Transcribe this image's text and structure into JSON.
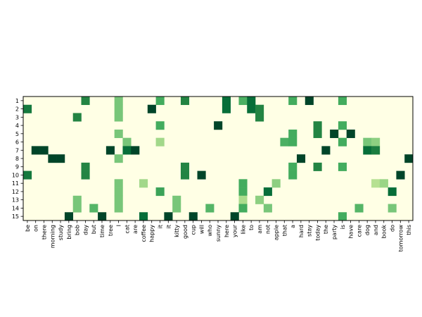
{
  "chart_data": {
    "type": "heatmap",
    "title": "",
    "xlabel": "",
    "ylabel": "",
    "colormap": "YlGn",
    "color_range": [
      0,
      1
    ],
    "colors": [
      "#ffffe5",
      "#f7fcb9",
      "#d9f0a3",
      "#addd8e",
      "#78c679",
      "#41ab5d",
      "#238443",
      "#006837",
      "#004529"
    ],
    "x_labels": [
      "be",
      "on",
      "there",
      "morning",
      "study",
      "bring",
      "bob",
      "day",
      "but",
      "time",
      "tree",
      "I",
      "cat",
      "are",
      "coffee",
      "happy",
      "it",
      "it",
      "kitty",
      "good",
      "cup",
      "will",
      "who",
      "sunny",
      "here",
      "your",
      "like",
      "to",
      "am",
      "not",
      "apple",
      "that",
      "a",
      "hard",
      "stay",
      "today",
      "the",
      "party",
      "is",
      "have",
      "care",
      "dog",
      "and",
      "book",
      "do",
      "tomorrow",
      "this"
    ],
    "y_labels": [
      "1",
      "2",
      "3",
      "4",
      "5",
      "6",
      "7",
      "8",
      "9",
      "10",
      "11",
      "12",
      "13",
      "14",
      "15"
    ],
    "background_value": 0,
    "cells": [
      [
        1,
        7,
        0.75
      ],
      [
        1,
        11,
        0.5
      ],
      [
        1,
        16,
        0.62
      ],
      [
        1,
        19,
        0.75
      ],
      [
        1,
        24,
        0.85
      ],
      [
        1,
        26,
        0.6
      ],
      [
        1,
        27,
        0.85
      ],
      [
        1,
        32,
        0.62
      ],
      [
        1,
        34,
        1
      ],
      [
        1,
        38,
        0.62
      ],
      [
        2,
        0,
        0.8
      ],
      [
        2,
        11,
        0.5
      ],
      [
        2,
        15,
        1
      ],
      [
        2,
        24,
        0.85
      ],
      [
        2,
        27,
        0.85
      ],
      [
        2,
        28,
        0.75
      ],
      [
        3,
        6,
        0.75
      ],
      [
        3,
        11,
        0.5
      ],
      [
        3,
        28,
        0.75
      ],
      [
        4,
        16,
        0.62
      ],
      [
        4,
        23,
        1
      ],
      [
        4,
        35,
        0.75
      ],
      [
        4,
        38,
        0.62
      ],
      [
        5,
        11,
        0.5
      ],
      [
        5,
        32,
        0.62
      ],
      [
        5,
        35,
        0.75
      ],
      [
        5,
        37,
        1
      ],
      [
        5,
        39,
        1
      ],
      [
        6,
        12,
        0.5
      ],
      [
        6,
        16,
        0.4
      ],
      [
        6,
        31,
        0.6
      ],
      [
        6,
        32,
        0.62
      ],
      [
        6,
        38,
        0.62
      ],
      [
        6,
        41,
        0.5
      ],
      [
        6,
        42,
        0.45
      ],
      [
        7,
        1,
        1
      ],
      [
        7,
        2,
        1
      ],
      [
        7,
        10,
        1
      ],
      [
        7,
        12,
        0.85
      ],
      [
        7,
        13,
        1
      ],
      [
        7,
        36,
        1
      ],
      [
        7,
        41,
        0.85
      ],
      [
        7,
        42,
        0.78
      ],
      [
        8,
        3,
        1
      ],
      [
        8,
        4,
        1
      ],
      [
        8,
        11,
        0.5
      ],
      [
        8,
        33,
        1
      ],
      [
        8,
        46,
        1
      ],
      [
        9,
        7,
        0.75
      ],
      [
        9,
        19,
        0.75
      ],
      [
        9,
        32,
        0.62
      ],
      [
        9,
        35,
        0.75
      ],
      [
        9,
        38,
        0.62
      ],
      [
        10,
        0,
        0.8
      ],
      [
        10,
        7,
        0.75
      ],
      [
        10,
        19,
        0.75
      ],
      [
        10,
        21,
        1
      ],
      [
        10,
        32,
        0.62
      ],
      [
        10,
        45,
        1
      ],
      [
        11,
        11,
        0.5
      ],
      [
        11,
        14,
        0.4
      ],
      [
        11,
        26,
        0.62
      ],
      [
        11,
        30,
        0.45
      ],
      [
        11,
        42,
        0.35
      ],
      [
        11,
        43,
        0.42
      ],
      [
        12,
        11,
        0.5
      ],
      [
        12,
        16,
        0.65
      ],
      [
        12,
        26,
        0.62
      ],
      [
        12,
        29,
        0.85
      ],
      [
        12,
        44,
        0.85
      ],
      [
        13,
        6,
        0.5
      ],
      [
        13,
        11,
        0.5
      ],
      [
        13,
        18,
        0.5
      ],
      [
        13,
        26,
        0.38
      ],
      [
        13,
        28,
        0.45
      ],
      [
        14,
        6,
        0.5
      ],
      [
        14,
        8,
        0.58
      ],
      [
        14,
        11,
        0.5
      ],
      [
        14,
        18,
        0.5
      ],
      [
        14,
        22,
        0.58
      ],
      [
        14,
        26,
        0.62
      ],
      [
        14,
        29,
        0.5
      ],
      [
        14,
        40,
        0.58
      ],
      [
        14,
        44,
        0.5
      ],
      [
        15,
        5,
        1
      ],
      [
        15,
        9,
        1
      ],
      [
        15,
        14,
        0.85
      ],
      [
        15,
        17,
        1
      ],
      [
        15,
        20,
        1
      ],
      [
        15,
        25,
        1
      ],
      [
        15,
        38,
        0.62
      ]
    ],
    "grid": false,
    "legend": "none"
  }
}
